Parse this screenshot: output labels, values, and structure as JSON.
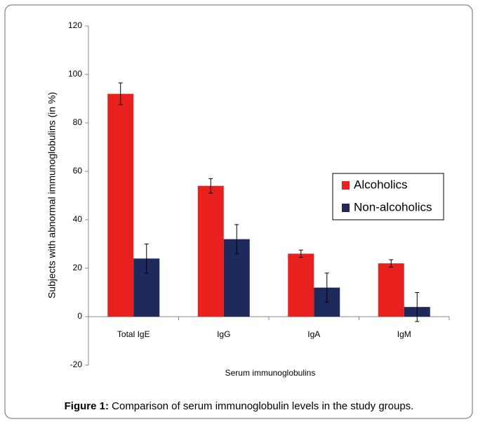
{
  "chart_data": {
    "type": "bar",
    "x_label": "Serum immunoglobulins",
    "y_label": "Subjects with abnormal immunoglobulins (in %)",
    "categories": [
      "Total IgE",
      "IgG",
      "IgA",
      "IgM"
    ],
    "series": [
      {
        "name": "Alcoholics",
        "color": "#e8211f",
        "values": [
          92,
          54,
          26,
          22
        ],
        "errors": [
          4.5,
          3,
          1.5,
          1.5
        ]
      },
      {
        "name": "Non-alcoholics",
        "color": "#1f2a5c",
        "values": [
          24,
          32,
          12,
          4
        ],
        "errors": [
          6,
          6,
          6,
          6
        ]
      }
    ],
    "ylim": [
      -20,
      120
    ],
    "yticks": [
      -20,
      0,
      20,
      40,
      60,
      80,
      100,
      120
    ],
    "grid": false,
    "legend_position": "right"
  },
  "caption": {
    "label": "Figure 1:",
    "text": "Comparison of serum immunoglobulin levels in the study groups."
  }
}
